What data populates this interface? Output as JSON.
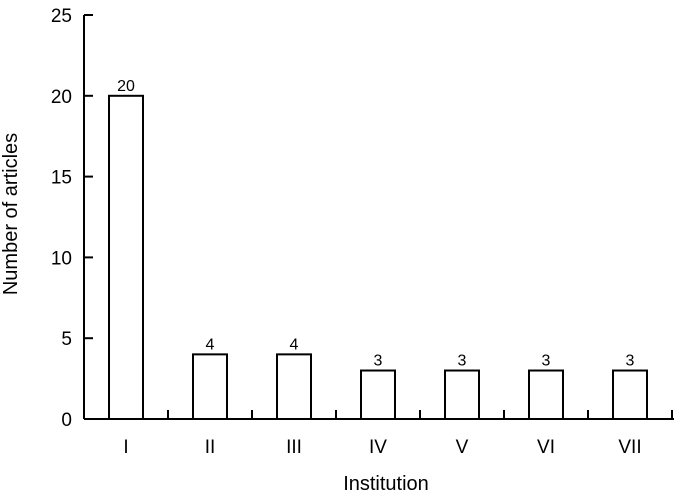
{
  "chart_data": {
    "type": "bar",
    "categories": [
      "I",
      "II",
      "III",
      "IV",
      "V",
      "VI",
      "VII"
    ],
    "values": [
      20,
      4,
      4,
      3,
      3,
      3,
      3
    ],
    "data_labels": [
      "20",
      "4",
      "4",
      "3",
      "3",
      "3",
      "3"
    ],
    "title": "",
    "xlabel": "Institution",
    "ylabel": "Number of articles",
    "ylim": [
      0,
      25
    ],
    "yticks": [
      0,
      5,
      10,
      15,
      20,
      25
    ],
    "grid": false,
    "legend": "none",
    "bar_fill": "#ffffff",
    "bar_stroke": "#000000"
  }
}
